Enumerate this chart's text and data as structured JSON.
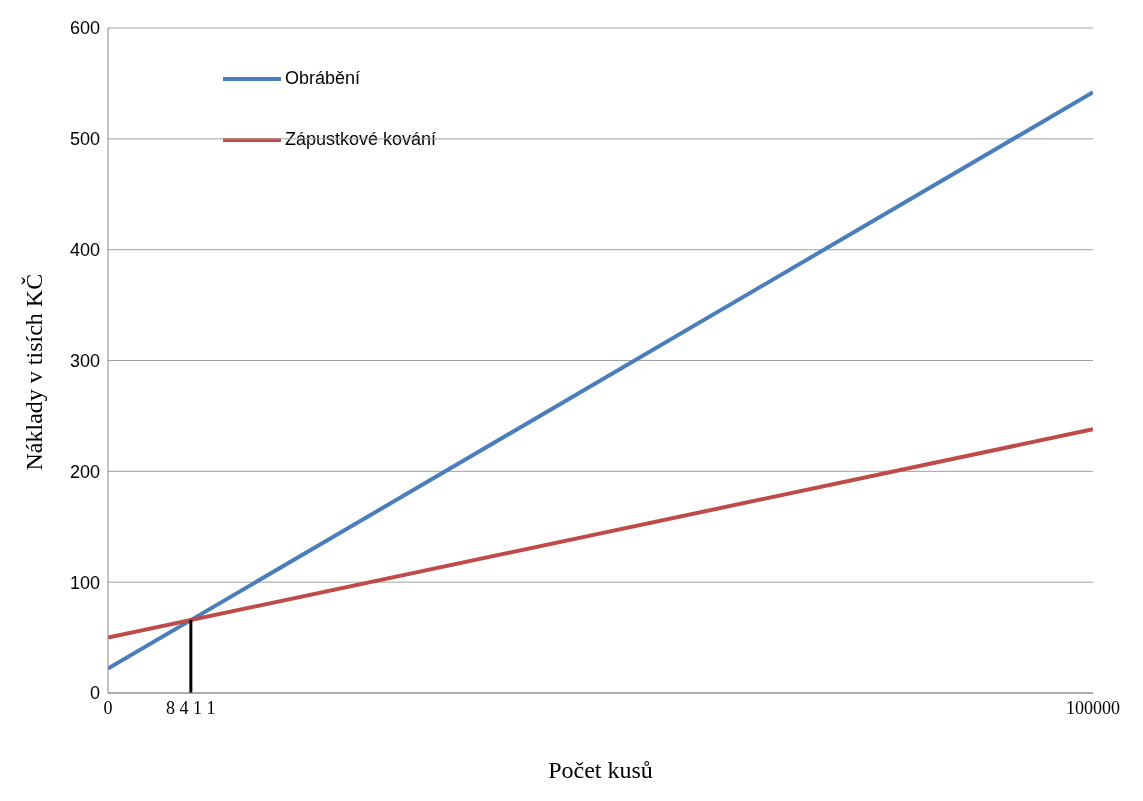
{
  "chart_data": {
    "type": "line",
    "xlabel": "Počet kusů",
    "ylabel": "Náklady v tisích KČ",
    "xlim": [
      0,
      100000
    ],
    "xticks": [
      0,
      {
        "value": 8411,
        "label": "8 4 1 1"
      },
      100000
    ],
    "ylim": [
      0,
      600
    ],
    "yticks": [
      0,
      100,
      200,
      300,
      400,
      500,
      600
    ],
    "grid": "y",
    "legend": "top left",
    "marker": "none",
    "line_style": "solid",
    "series": [
      {
        "name": "Obrábění",
        "color": "#4a7ebb",
        "x": [
          0,
          100000
        ],
        "values": [
          22,
          542
        ]
      },
      {
        "name": "Zápustkové kování",
        "color": "#be4b48",
        "x": [
          0,
          100000
        ],
        "values": [
          50,
          238
        ]
      },
      {
        "color": "#000000",
        "x": [
          8411,
          8411
        ],
        "values": [
          0,
          66
        ]
      }
    ]
  }
}
